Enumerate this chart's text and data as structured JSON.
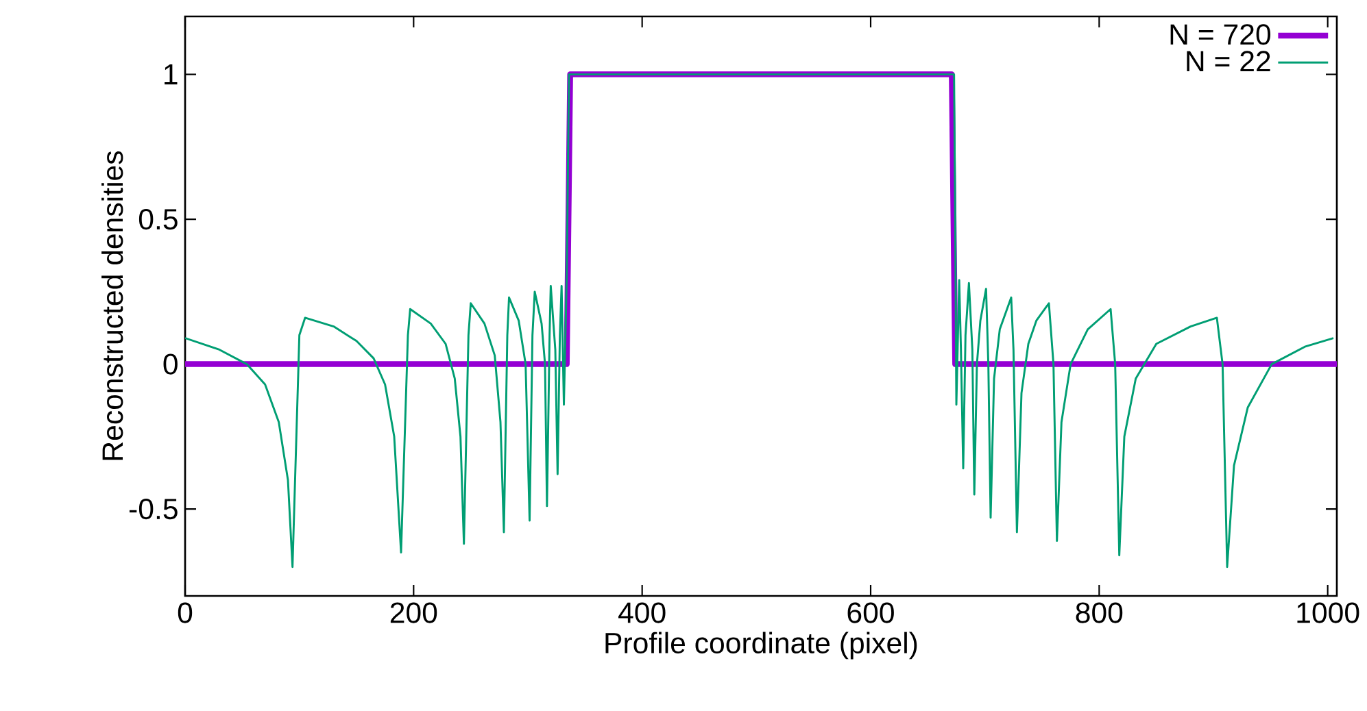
{
  "chart_data": {
    "type": "line",
    "xlabel": "Profile coordinate (pixel)",
    "ylabel": "Reconstructed densities",
    "xlim": [
      0,
      1008
    ],
    "ylim": [
      -0.8,
      1.2
    ],
    "xticks": [
      0,
      200,
      400,
      600,
      800,
      1000
    ],
    "yticks": [
      -0.5,
      0,
      0.5,
      1
    ],
    "legend": "top right",
    "series": [
      {
        "name": "N = 720",
        "color": "#9400d3",
        "x": [
          0,
          334,
          337,
          671,
          674,
          1008
        ],
        "values": [
          0,
          0,
          1,
          1,
          0,
          0
        ]
      },
      {
        "name": "N = 22",
        "color": "#009e73",
        "x": [
          0,
          30,
          54,
          70,
          82,
          90,
          94,
          100,
          105,
          130,
          150,
          165,
          175,
          183,
          189,
          195,
          197,
          215,
          228,
          236,
          241,
          244,
          248,
          250,
          262,
          271,
          276,
          279,
          282,
          283.5,
          292,
          298,
          301.5,
          304,
          306,
          312,
          315,
          316.7,
          319,
          320,
          324,
          326,
          328,
          329.5,
          331.5,
          334,
          336,
          340,
          670,
          673,
          674,
          675,
          677.5,
          679,
          681,
          683,
          686,
          689,
          690.7,
          693,
          696,
          701,
          703,
          705,
          708,
          713,
          723,
          725,
          728,
          732,
          738,
          745,
          756,
          760,
          763,
          767,
          775,
          790,
          810,
          814,
          817.6,
          822,
          832,
          850,
          880,
          903,
          908,
          912,
          918,
          930,
          951,
          980,
          1005
        ],
        "values": [
          0.09,
          0.05,
          0,
          -0.07,
          -0.2,
          -0.4,
          -0.7,
          0.1,
          0.16,
          0.13,
          0.08,
          0.02,
          -0.07,
          -0.25,
          -0.65,
          0.1,
          0.19,
          0.14,
          0.07,
          -0.05,
          -0.25,
          -0.62,
          0.1,
          0.21,
          0.14,
          0.03,
          -0.2,
          -0.58,
          0.1,
          0.23,
          0.15,
          0,
          -0.54,
          0.1,
          0.25,
          0.14,
          0,
          -0.49,
          0.1,
          0.27,
          0.05,
          -0.38,
          0.1,
          0.27,
          -0.14,
          0.3,
          1,
          1,
          1,
          1,
          0.5,
          -0.14,
          0.29,
          0.05,
          -0.36,
          0.1,
          0.28,
          0.05,
          -0.45,
          0,
          0.15,
          0.26,
          0,
          -0.53,
          -0.05,
          0.12,
          0.23,
          0.05,
          -0.58,
          -0.1,
          0.07,
          0.15,
          0.21,
          0,
          -0.61,
          -0.2,
          0,
          0.12,
          0.19,
          0,
          -0.66,
          -0.25,
          -0.05,
          0.07,
          0.13,
          0.16,
          0,
          -0.7,
          -0.35,
          -0.15,
          0,
          0.06,
          0.09
        ]
      }
    ]
  }
}
